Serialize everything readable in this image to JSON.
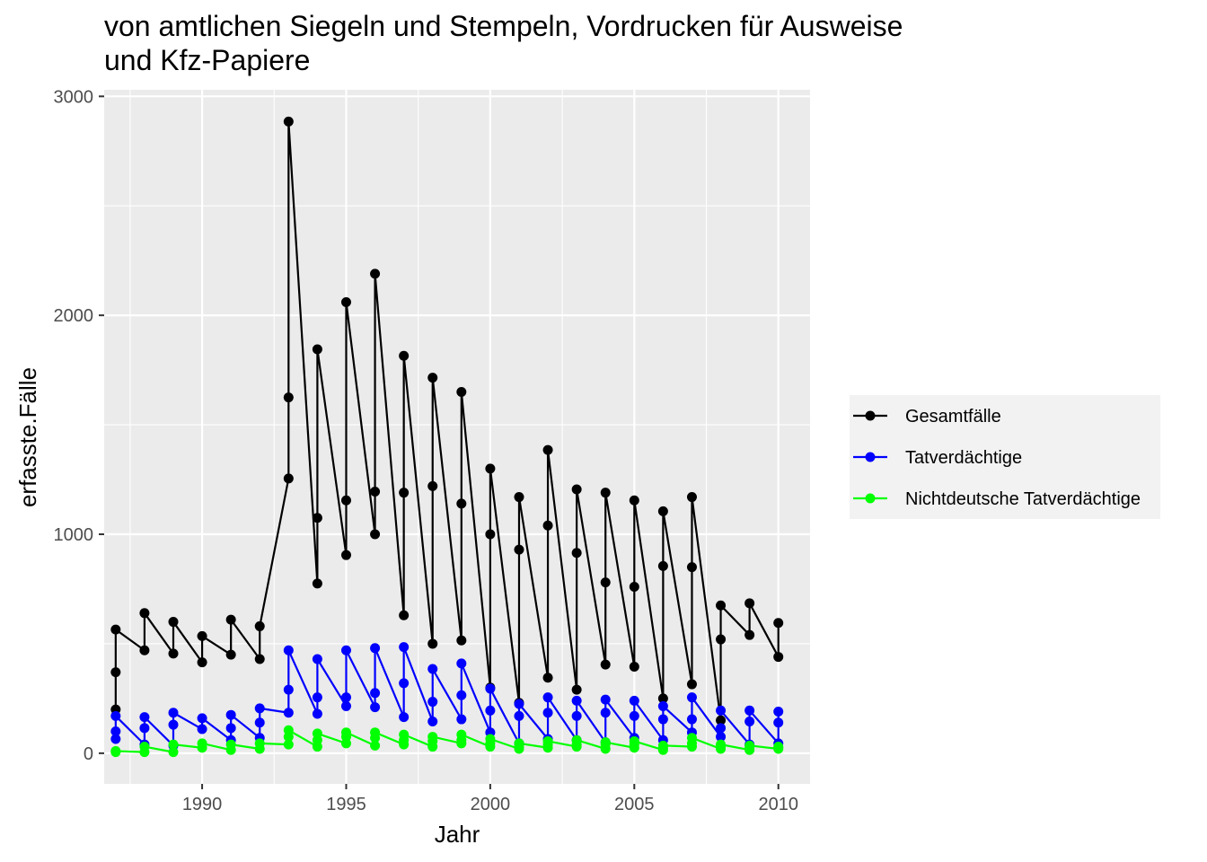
{
  "chart_data": {
    "type": "line",
    "title_line1": "von amtlichen Siegeln und Stempeln, Vordrucken für Ausweise",
    "title_line2": "und Kfz-Papiere",
    "xlabel": "Jahr",
    "ylabel": "erfasste.Fälle",
    "xlim": [
      1986.6,
      2011.1
    ],
    "ylim": [
      -140,
      3030
    ],
    "x_ticks": [
      1990,
      1995,
      2000,
      2005,
      2010
    ],
    "y_ticks": [
      0,
      1000,
      2000,
      3000
    ],
    "grid": true,
    "legend_position": "right",
    "series": [
      {
        "name": "Gesamtfälle",
        "color": "#000000",
        "points": [
          [
            1987,
            200
          ],
          [
            1987,
            370
          ],
          [
            1987,
            565
          ],
          [
            1988,
            470
          ],
          [
            1988,
            640
          ],
          [
            1989,
            455
          ],
          [
            1989,
            600
          ],
          [
            1990,
            415
          ],
          [
            1990,
            535
          ],
          [
            1991,
            450
          ],
          [
            1991,
            610
          ],
          [
            1992,
            430
          ],
          [
            1992,
            580
          ],
          [
            1993,
            1255
          ],
          [
            1993,
            1625
          ],
          [
            1993,
            2885
          ],
          [
            1994,
            775
          ],
          [
            1994,
            1075
          ],
          [
            1994,
            1845
          ],
          [
            1995,
            905
          ],
          [
            1995,
            1155
          ],
          [
            1995,
            2060
          ],
          [
            1996,
            1000
          ],
          [
            1996,
            1195
          ],
          [
            1996,
            2190
          ],
          [
            1997,
            630
          ],
          [
            1997,
            1190
          ],
          [
            1997,
            1815
          ],
          [
            1998,
            500
          ],
          [
            1998,
            1220
          ],
          [
            1998,
            1715
          ],
          [
            1999,
            515
          ],
          [
            1999,
            1140
          ],
          [
            1999,
            1650
          ],
          [
            2000,
            300
          ],
          [
            2000,
            1000
          ],
          [
            2000,
            1300
          ],
          [
            2001,
            230
          ],
          [
            2001,
            930
          ],
          [
            2001,
            1170
          ],
          [
            2002,
            345
          ],
          [
            2002,
            1040
          ],
          [
            2002,
            1385
          ],
          [
            2003,
            290
          ],
          [
            2003,
            915
          ],
          [
            2003,
            1205
          ],
          [
            2004,
            405
          ],
          [
            2004,
            780
          ],
          [
            2004,
            1190
          ],
          [
            2005,
            395
          ],
          [
            2005,
            760
          ],
          [
            2005,
            1155
          ],
          [
            2006,
            250
          ],
          [
            2006,
            855
          ],
          [
            2006,
            1105
          ],
          [
            2007,
            315
          ],
          [
            2007,
            850
          ],
          [
            2007,
            1170
          ],
          [
            2008,
            150
          ],
          [
            2008,
            520
          ],
          [
            2008,
            675
          ],
          [
            2009,
            540
          ],
          [
            2009,
            685
          ],
          [
            2010,
            440
          ],
          [
            2010,
            595
          ]
        ]
      },
      {
        "name": "Tatverdächtige",
        "color": "#0000ff",
        "points": [
          [
            1987,
            65
          ],
          [
            1987,
            100
          ],
          [
            1987,
            170
          ],
          [
            1988,
            40
          ],
          [
            1988,
            115
          ],
          [
            1988,
            165
          ],
          [
            1989,
            35
          ],
          [
            1989,
            130
          ],
          [
            1989,
            185
          ],
          [
            1990,
            110
          ],
          [
            1990,
            160
          ],
          [
            1991,
            60
          ],
          [
            1991,
            115
          ],
          [
            1991,
            175
          ],
          [
            1992,
            70
          ],
          [
            1992,
            140
          ],
          [
            1992,
            205
          ],
          [
            1993,
            185
          ],
          [
            1993,
            290
          ],
          [
            1993,
            470
          ],
          [
            1994,
            180
          ],
          [
            1994,
            255
          ],
          [
            1994,
            430
          ],
          [
            1995,
            215
          ],
          [
            1995,
            255
          ],
          [
            1995,
            470
          ],
          [
            1996,
            210
          ],
          [
            1996,
            275
          ],
          [
            1996,
            480
          ],
          [
            1997,
            165
          ],
          [
            1997,
            320
          ],
          [
            1997,
            485
          ],
          [
            1998,
            145
          ],
          [
            1998,
            235
          ],
          [
            1998,
            385
          ],
          [
            1999,
            155
          ],
          [
            1999,
            265
          ],
          [
            1999,
            410
          ],
          [
            2000,
            95
          ],
          [
            2000,
            195
          ],
          [
            2000,
            295
          ],
          [
            2001,
            45
          ],
          [
            2001,
            170
          ],
          [
            2001,
            225
          ],
          [
            2002,
            65
          ],
          [
            2002,
            185
          ],
          [
            2002,
            255
          ],
          [
            2003,
            60
          ],
          [
            2003,
            170
          ],
          [
            2003,
            240
          ],
          [
            2004,
            50
          ],
          [
            2004,
            185
          ],
          [
            2004,
            245
          ],
          [
            2005,
            70
          ],
          [
            2005,
            170
          ],
          [
            2005,
            240
          ],
          [
            2006,
            60
          ],
          [
            2006,
            155
          ],
          [
            2006,
            215
          ],
          [
            2007,
            95
          ],
          [
            2007,
            155
          ],
          [
            2007,
            255
          ],
          [
            2008,
            75
          ],
          [
            2008,
            115
          ],
          [
            2008,
            195
          ],
          [
            2009,
            40
          ],
          [
            2009,
            145
          ],
          [
            2009,
            195
          ],
          [
            2010,
            45
          ],
          [
            2010,
            140
          ],
          [
            2010,
            190
          ]
        ]
      },
      {
        "name": "Nichtdeutsche Tatverdächtige",
        "color": "#00ff00",
        "points": [
          [
            1987,
            5
          ],
          [
            1987,
            10
          ],
          [
            1988,
            5
          ],
          [
            1988,
            30
          ],
          [
            1989,
            5
          ],
          [
            1989,
            40
          ],
          [
            1990,
            25
          ],
          [
            1990,
            45
          ],
          [
            1991,
            15
          ],
          [
            1991,
            40
          ],
          [
            1992,
            20
          ],
          [
            1992,
            45
          ],
          [
            1993,
            40
          ],
          [
            1993,
            75
          ],
          [
            1993,
            105
          ],
          [
            1994,
            30
          ],
          [
            1994,
            60
          ],
          [
            1994,
            90
          ],
          [
            1995,
            45
          ],
          [
            1995,
            75
          ],
          [
            1995,
            95
          ],
          [
            1996,
            35
          ],
          [
            1996,
            70
          ],
          [
            1996,
            95
          ],
          [
            1997,
            40
          ],
          [
            1997,
            60
          ],
          [
            1997,
            85
          ],
          [
            1998,
            30
          ],
          [
            1998,
            55
          ],
          [
            1998,
            75
          ],
          [
            1999,
            45
          ],
          [
            1999,
            60
          ],
          [
            1999,
            85
          ],
          [
            2000,
            30
          ],
          [
            2000,
            45
          ],
          [
            2000,
            65
          ],
          [
            2001,
            20
          ],
          [
            2001,
            30
          ],
          [
            2001,
            45
          ],
          [
            2002,
            25
          ],
          [
            2002,
            40
          ],
          [
            2002,
            55
          ],
          [
            2003,
            30
          ],
          [
            2003,
            40
          ],
          [
            2003,
            60
          ],
          [
            2004,
            20
          ],
          [
            2004,
            40
          ],
          [
            2004,
            50
          ],
          [
            2005,
            25
          ],
          [
            2005,
            40
          ],
          [
            2005,
            55
          ],
          [
            2006,
            15
          ],
          [
            2006,
            25
          ],
          [
            2006,
            35
          ],
          [
            2007,
            30
          ],
          [
            2007,
            45
          ],
          [
            2007,
            70
          ],
          [
            2008,
            20
          ],
          [
            2008,
            30
          ],
          [
            2008,
            40
          ],
          [
            2009,
            15
          ],
          [
            2009,
            25
          ],
          [
            2009,
            35
          ],
          [
            2010,
            20
          ],
          [
            2010,
            25
          ],
          [
            2010,
            30
          ]
        ]
      }
    ]
  }
}
